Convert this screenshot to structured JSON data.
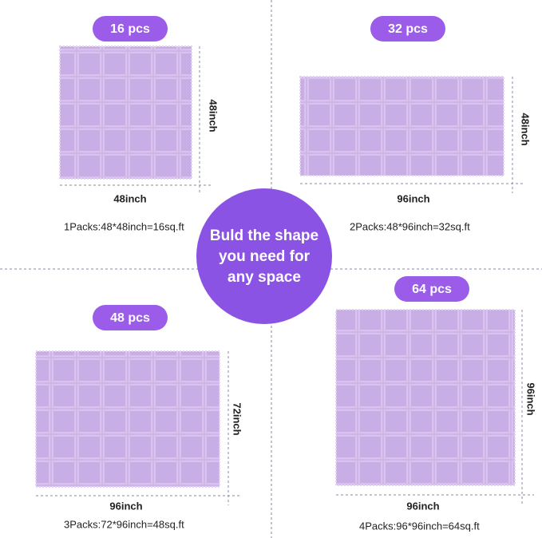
{
  "center_text": [
    "Buld the shape",
    "you need for",
    "any space"
  ],
  "panels": [
    {
      "badge": "16 pcs",
      "width_label": "48inch",
      "height_label": "48inch",
      "caption": "1Packs:48*48inch=16sq.ft"
    },
    {
      "badge": "32 pcs",
      "width_label": "96inch",
      "height_label": "48inch",
      "caption": "2Packs:48*96inch=32sq.ft"
    },
    {
      "badge": "48 pcs",
      "width_label": "96inch",
      "height_label": "72inch",
      "caption": "3Packs:72*96inch=48sq.ft"
    },
    {
      "badge": "64 pcs",
      "width_label": "96inch",
      "height_label": "96inch",
      "caption": "4Packs:96*96inch=64sq.ft"
    }
  ]
}
